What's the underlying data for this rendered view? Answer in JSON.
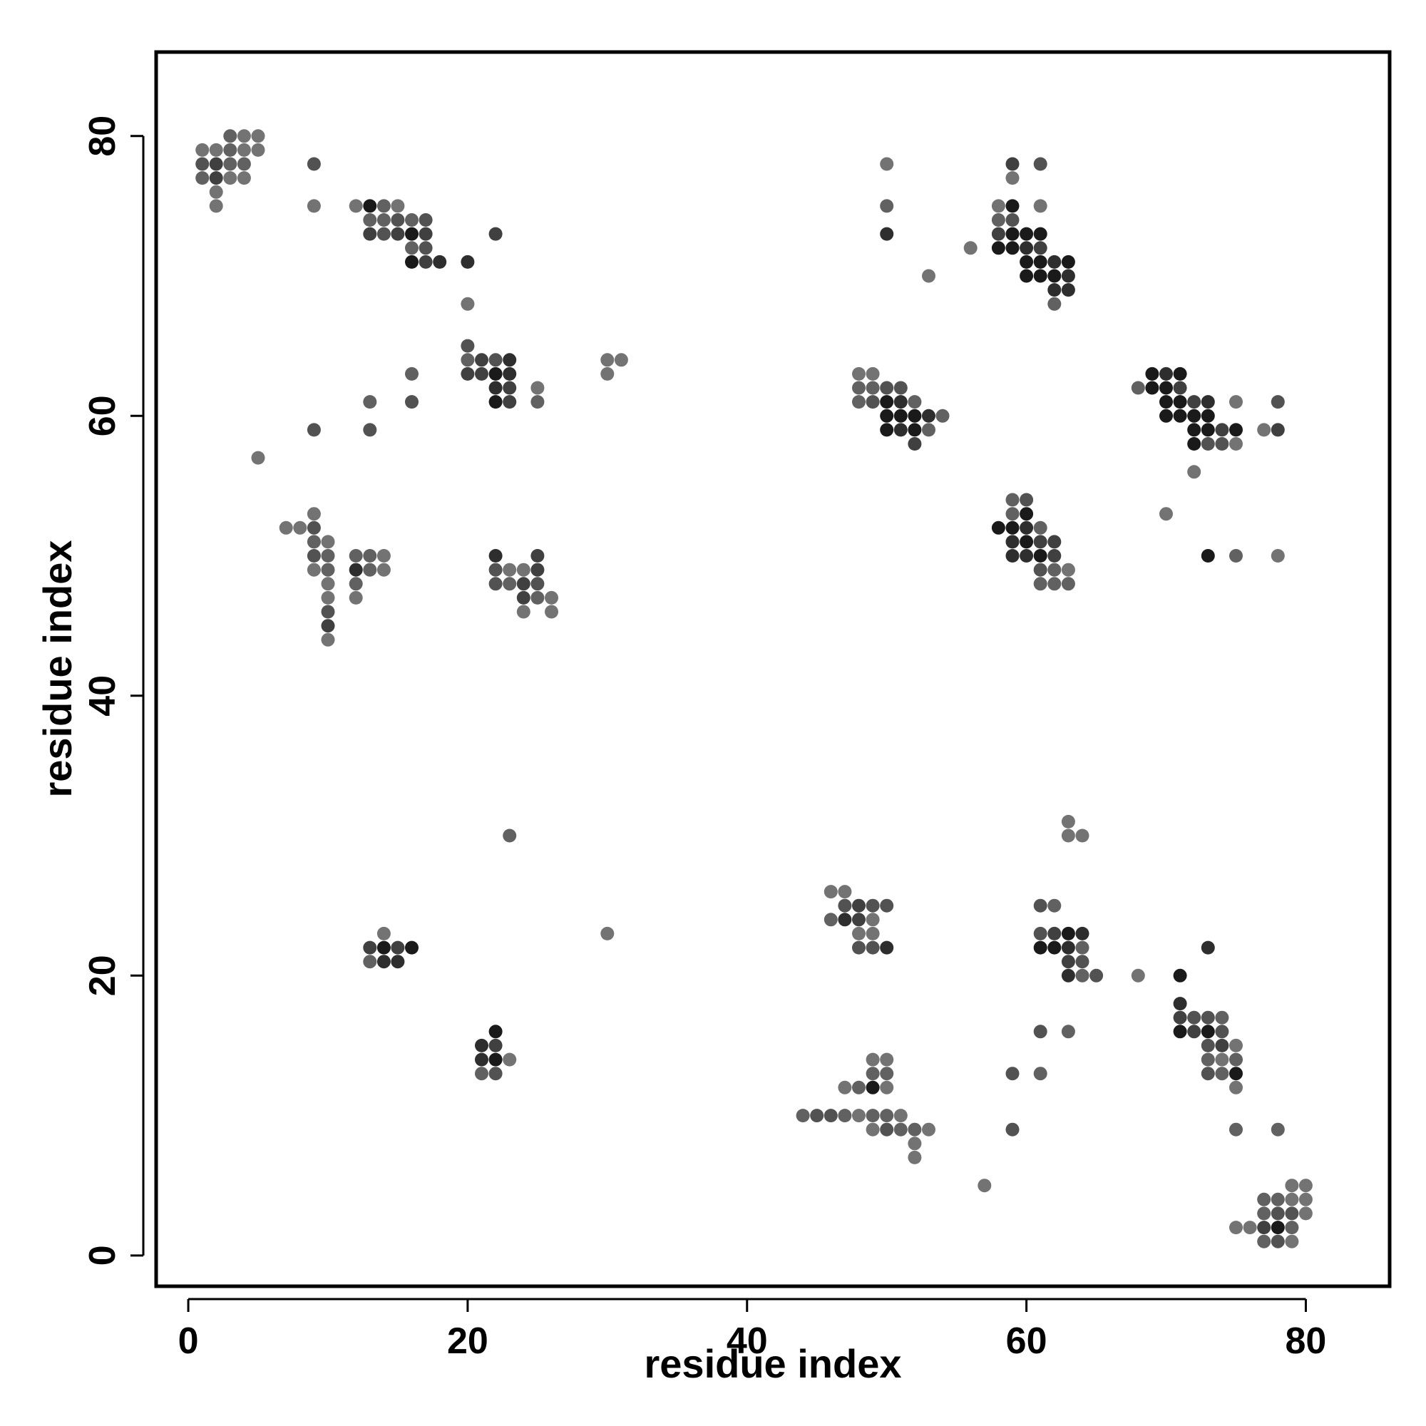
{
  "chart_data": {
    "type": "scatter",
    "title": "",
    "xlabel": "residue index",
    "ylabel": "residue index",
    "xlim": [
      -2.3,
      86
    ],
    "ylim": [
      -2.2,
      86
    ],
    "xticks": [
      0,
      20,
      40,
      60,
      80
    ],
    "yticks": [
      0,
      20,
      40,
      60,
      80
    ],
    "grid": false,
    "legend": "none",
    "points": [
      [
        1,
        79,
        0.45
      ],
      [
        2,
        79,
        0.45
      ],
      [
        3,
        80,
        0.38
      ],
      [
        4,
        80,
        0.45
      ],
      [
        5,
        80,
        0.45
      ],
      [
        3,
        79,
        0.38
      ],
      [
        4,
        79,
        0.45
      ],
      [
        5,
        79,
        0.45
      ],
      [
        1,
        78,
        0.32
      ],
      [
        2,
        78,
        0.25
      ],
      [
        3,
        78,
        0.38
      ],
      [
        4,
        78,
        0.38
      ],
      [
        1,
        77,
        0.38
      ],
      [
        2,
        77,
        0.25
      ],
      [
        3,
        77,
        0.45
      ],
      [
        4,
        77,
        0.45
      ],
      [
        2,
        76,
        0.45
      ],
      [
        2,
        75,
        0.45
      ],
      [
        9,
        78,
        0.32
      ],
      [
        9,
        75,
        0.45
      ],
      [
        12,
        75,
        0.45
      ],
      [
        13,
        75,
        0.1
      ],
      [
        14,
        75,
        0.38
      ],
      [
        15,
        75,
        0.45
      ],
      [
        13,
        74,
        0.38
      ],
      [
        14,
        74,
        0.38
      ],
      [
        15,
        74,
        0.32
      ],
      [
        16,
        74,
        0.38
      ],
      [
        17,
        74,
        0.32
      ],
      [
        13,
        73,
        0.25
      ],
      [
        14,
        73,
        0.32
      ],
      [
        15,
        73,
        0.25
      ],
      [
        16,
        73,
        0.1
      ],
      [
        17,
        73,
        0.25
      ],
      [
        16,
        72,
        0.38
      ],
      [
        17,
        72,
        0.32
      ],
      [
        16,
        71,
        0.1
      ],
      [
        17,
        71,
        0.25
      ],
      [
        18,
        71,
        0.18
      ],
      [
        22,
        73,
        0.25
      ],
      [
        20,
        71,
        0.18
      ],
      [
        20,
        68,
        0.45
      ],
      [
        20,
        65,
        0.32
      ],
      [
        20,
        64,
        0.38
      ],
      [
        21,
        64,
        0.25
      ],
      [
        22,
        64,
        0.32
      ],
      [
        23,
        64,
        0.18
      ],
      [
        20,
        63,
        0.25
      ],
      [
        21,
        63,
        0.25
      ],
      [
        22,
        63,
        0.1
      ],
      [
        23,
        63,
        0.18
      ],
      [
        22,
        62,
        0.18
      ],
      [
        23,
        62,
        0.25
      ],
      [
        22,
        61,
        0.1
      ],
      [
        23,
        61,
        0.25
      ],
      [
        25,
        62,
        0.45
      ],
      [
        25,
        61,
        0.38
      ],
      [
        16,
        63,
        0.38
      ],
      [
        16,
        61,
        0.32
      ],
      [
        13,
        61,
        0.38
      ],
      [
        30,
        64,
        0.45
      ],
      [
        31,
        64,
        0.45
      ],
      [
        30,
        63,
        0.45
      ],
      [
        9,
        59,
        0.32
      ],
      [
        13,
        59,
        0.32
      ],
      [
        5,
        57,
        0.45
      ],
      [
        7,
        52,
        0.45
      ],
      [
        8,
        52,
        0.45
      ],
      [
        9,
        53,
        0.45
      ],
      [
        9,
        52,
        0.32
      ],
      [
        9,
        51,
        0.38
      ],
      [
        10,
        51,
        0.45
      ],
      [
        9,
        50,
        0.32
      ],
      [
        10,
        50,
        0.38
      ],
      [
        9,
        49,
        0.45
      ],
      [
        10,
        49,
        0.38
      ],
      [
        10,
        48,
        0.45
      ],
      [
        10,
        47,
        0.45
      ],
      [
        10,
        46,
        0.32
      ],
      [
        10,
        45,
        0.25
      ],
      [
        10,
        44,
        0.45
      ],
      [
        12,
        50,
        0.38
      ],
      [
        13,
        50,
        0.38
      ],
      [
        14,
        50,
        0.45
      ],
      [
        12,
        49,
        0.18
      ],
      [
        13,
        49,
        0.38
      ],
      [
        14,
        49,
        0.45
      ],
      [
        12,
        48,
        0.38
      ],
      [
        12,
        47,
        0.45
      ],
      [
        22,
        50,
        0.18
      ],
      [
        25,
        50,
        0.25
      ],
      [
        22,
        49,
        0.32
      ],
      [
        23,
        49,
        0.45
      ],
      [
        24,
        49,
        0.45
      ],
      [
        25,
        49,
        0.25
      ],
      [
        22,
        48,
        0.32
      ],
      [
        23,
        48,
        0.38
      ],
      [
        24,
        48,
        0.25
      ],
      [
        25,
        48,
        0.32
      ],
      [
        24,
        47,
        0.25
      ],
      [
        25,
        47,
        0.38
      ],
      [
        26,
        47,
        0.45
      ],
      [
        24,
        46,
        0.45
      ],
      [
        26,
        46,
        0.45
      ],
      [
        50,
        78,
        0.45
      ],
      [
        50,
        75,
        0.38
      ],
      [
        50,
        73,
        0.18
      ],
      [
        53,
        70,
        0.45
      ],
      [
        56,
        72,
        0.45
      ],
      [
        59,
        78,
        0.25
      ],
      [
        61,
        78,
        0.32
      ],
      [
        59,
        77,
        0.45
      ],
      [
        58,
        75,
        0.45
      ],
      [
        59,
        75,
        0.1
      ],
      [
        61,
        75,
        0.45
      ],
      [
        58,
        74,
        0.38
      ],
      [
        59,
        74,
        0.32
      ],
      [
        58,
        73,
        0.25
      ],
      [
        59,
        73,
        0.1
      ],
      [
        60,
        73,
        0.1
      ],
      [
        61,
        73,
        0.1
      ],
      [
        58,
        72,
        0.1
      ],
      [
        59,
        72,
        0.1
      ],
      [
        60,
        72,
        0.18
      ],
      [
        61,
        72,
        0.25
      ],
      [
        60,
        71,
        0.1
      ],
      [
        61,
        71,
        0.1
      ],
      [
        62,
        71,
        0.18
      ],
      [
        63,
        71,
        0.1
      ],
      [
        60,
        70,
        0.1
      ],
      [
        61,
        70,
        0.1
      ],
      [
        62,
        70,
        0.1
      ],
      [
        63,
        70,
        0.18
      ],
      [
        62,
        69,
        0.18
      ],
      [
        63,
        69,
        0.18
      ],
      [
        62,
        68,
        0.38
      ],
      [
        48,
        63,
        0.45
      ],
      [
        49,
        63,
        0.45
      ],
      [
        48,
        62,
        0.38
      ],
      [
        49,
        62,
        0.38
      ],
      [
        50,
        62,
        0.32
      ],
      [
        51,
        62,
        0.32
      ],
      [
        48,
        61,
        0.38
      ],
      [
        49,
        61,
        0.32
      ],
      [
        50,
        61,
        0.1
      ],
      [
        51,
        61,
        0.18
      ],
      [
        52,
        61,
        0.38
      ],
      [
        50,
        60,
        0.1
      ],
      [
        51,
        60,
        0.1
      ],
      [
        52,
        60,
        0.1
      ],
      [
        53,
        60,
        0.18
      ],
      [
        54,
        60,
        0.38
      ],
      [
        50,
        59,
        0.1
      ],
      [
        51,
        59,
        0.18
      ],
      [
        52,
        59,
        0.1
      ],
      [
        53,
        59,
        0.38
      ],
      [
        52,
        58,
        0.25
      ],
      [
        59,
        54,
        0.38
      ],
      [
        60,
        54,
        0.32
      ],
      [
        58,
        52,
        0.1
      ],
      [
        59,
        52,
        0.1
      ],
      [
        60,
        52,
        0.18
      ],
      [
        61,
        52,
        0.38
      ],
      [
        59,
        53,
        0.38
      ],
      [
        60,
        53,
        0.1
      ],
      [
        59,
        51,
        0.18
      ],
      [
        60,
        51,
        0.1
      ],
      [
        61,
        51,
        0.25
      ],
      [
        62,
        51,
        0.25
      ],
      [
        59,
        50,
        0.18
      ],
      [
        60,
        50,
        0.18
      ],
      [
        61,
        50,
        0.1
      ],
      [
        62,
        50,
        0.25
      ],
      [
        61,
        49,
        0.32
      ],
      [
        62,
        49,
        0.38
      ],
      [
        63,
        49,
        0.45
      ],
      [
        61,
        48,
        0.38
      ],
      [
        62,
        48,
        0.38
      ],
      [
        63,
        48,
        0.38
      ],
      [
        68,
        62,
        0.38
      ],
      [
        69,
        63,
        0.1
      ],
      [
        70,
        63,
        0.18
      ],
      [
        71,
        63,
        0.1
      ],
      [
        69,
        62,
        0.1
      ],
      [
        70,
        62,
        0.1
      ],
      [
        71,
        62,
        0.25
      ],
      [
        70,
        61,
        0.1
      ],
      [
        71,
        61,
        0.1
      ],
      [
        72,
        61,
        0.25
      ],
      [
        73,
        61,
        0.18
      ],
      [
        75,
        61,
        0.45
      ],
      [
        78,
        61,
        0.32
      ],
      [
        70,
        60,
        0.1
      ],
      [
        71,
        60,
        0.1
      ],
      [
        72,
        60,
        0.1
      ],
      [
        73,
        60,
        0.1
      ],
      [
        72,
        59,
        0.1
      ],
      [
        73,
        59,
        0.1
      ],
      [
        74,
        59,
        0.25
      ],
      [
        75,
        59,
        0.1
      ],
      [
        77,
        59,
        0.45
      ],
      [
        78,
        59,
        0.25
      ],
      [
        72,
        58,
        0.1
      ],
      [
        73,
        58,
        0.32
      ],
      [
        74,
        58,
        0.32
      ],
      [
        75,
        58,
        0.45
      ],
      [
        72,
        56,
        0.45
      ],
      [
        70,
        53,
        0.45
      ],
      [
        73,
        50,
        0.1
      ],
      [
        75,
        50,
        0.38
      ],
      [
        78,
        50,
        0.45
      ],
      [
        63,
        31,
        0.45
      ],
      [
        63,
        30,
        0.45
      ],
      [
        64,
        30,
        0.45
      ],
      [
        23,
        30,
        0.38
      ],
      [
        30,
        23,
        0.45
      ],
      [
        14,
        23,
        0.45
      ],
      [
        13,
        22,
        0.25
      ],
      [
        14,
        22,
        0.1
      ],
      [
        15,
        22,
        0.25
      ],
      [
        16,
        22,
        0.1
      ],
      [
        13,
        21,
        0.38
      ],
      [
        14,
        21,
        0.18
      ],
      [
        15,
        21,
        0.18
      ],
      [
        46,
        26,
        0.45
      ],
      [
        47,
        26,
        0.45
      ],
      [
        47,
        25,
        0.32
      ],
      [
        48,
        25,
        0.25
      ],
      [
        49,
        25,
        0.32
      ],
      [
        50,
        25,
        0.32
      ],
      [
        46,
        24,
        0.38
      ],
      [
        47,
        24,
        0.18
      ],
      [
        48,
        24,
        0.25
      ],
      [
        49,
        24,
        0.45
      ],
      [
        48,
        23,
        0.45
      ],
      [
        49,
        23,
        0.45
      ],
      [
        48,
        22,
        0.32
      ],
      [
        49,
        22,
        0.32
      ],
      [
        50,
        22,
        0.18
      ],
      [
        61,
        25,
        0.32
      ],
      [
        62,
        25,
        0.38
      ],
      [
        61,
        23,
        0.32
      ],
      [
        62,
        23,
        0.25
      ],
      [
        63,
        23,
        0.1
      ],
      [
        64,
        23,
        0.18
      ],
      [
        61,
        22,
        0.1
      ],
      [
        62,
        22,
        0.1
      ],
      [
        63,
        22,
        0.18
      ],
      [
        64,
        22,
        0.38
      ],
      [
        63,
        21,
        0.25
      ],
      [
        64,
        21,
        0.32
      ],
      [
        63,
        20,
        0.18
      ],
      [
        64,
        20,
        0.38
      ],
      [
        65,
        20,
        0.32
      ],
      [
        68,
        20,
        0.45
      ],
      [
        61,
        16,
        0.32
      ],
      [
        63,
        16,
        0.38
      ],
      [
        73,
        22,
        0.18
      ],
      [
        71,
        20,
        0.1
      ],
      [
        71,
        18,
        0.18
      ],
      [
        71,
        17,
        0.25
      ],
      [
        72,
        17,
        0.32
      ],
      [
        73,
        17,
        0.32
      ],
      [
        74,
        17,
        0.38
      ],
      [
        71,
        16,
        0.1
      ],
      [
        72,
        16,
        0.25
      ],
      [
        73,
        16,
        0.1
      ],
      [
        74,
        16,
        0.32
      ],
      [
        73,
        15,
        0.32
      ],
      [
        74,
        15,
        0.25
      ],
      [
        75,
        15,
        0.45
      ],
      [
        73,
        14,
        0.38
      ],
      [
        74,
        14,
        0.45
      ],
      [
        75,
        14,
        0.38
      ],
      [
        73,
        13,
        0.32
      ],
      [
        74,
        13,
        0.38
      ],
      [
        75,
        13,
        0.1
      ],
      [
        75,
        12,
        0.45
      ],
      [
        75,
        9,
        0.38
      ],
      [
        78,
        9,
        0.38
      ],
      [
        22,
        16,
        0.1
      ],
      [
        21,
        15,
        0.18
      ],
      [
        22,
        15,
        0.25
      ],
      [
        21,
        14,
        0.18
      ],
      [
        22,
        14,
        0.1
      ],
      [
        23,
        14,
        0.45
      ],
      [
        21,
        13,
        0.38
      ],
      [
        22,
        13,
        0.32
      ],
      [
        49,
        14,
        0.45
      ],
      [
        50,
        14,
        0.45
      ],
      [
        49,
        13,
        0.38
      ],
      [
        50,
        13,
        0.38
      ],
      [
        47,
        12,
        0.45
      ],
      [
        48,
        12,
        0.38
      ],
      [
        49,
        12,
        0.1
      ],
      [
        50,
        12,
        0.45
      ],
      [
        44,
        10,
        0.38
      ],
      [
        45,
        10,
        0.32
      ],
      [
        46,
        10,
        0.32
      ],
      [
        47,
        10,
        0.38
      ],
      [
        48,
        10,
        0.45
      ],
      [
        49,
        10,
        0.38
      ],
      [
        50,
        10,
        0.38
      ],
      [
        51,
        10,
        0.45
      ],
      [
        49,
        9,
        0.45
      ],
      [
        50,
        9,
        0.32
      ],
      [
        51,
        9,
        0.38
      ],
      [
        52,
        9,
        0.38
      ],
      [
        53,
        9,
        0.45
      ],
      [
        52,
        8,
        0.45
      ],
      [
        52,
        7,
        0.45
      ],
      [
        59,
        13,
        0.32
      ],
      [
        61,
        13,
        0.38
      ],
      [
        59,
        9,
        0.32
      ],
      [
        57,
        5,
        0.45
      ],
      [
        79,
        5,
        0.45
      ],
      [
        80,
        5,
        0.45
      ],
      [
        77,
        4,
        0.38
      ],
      [
        78,
        4,
        0.38
      ],
      [
        79,
        4,
        0.45
      ],
      [
        80,
        4,
        0.45
      ],
      [
        77,
        3,
        0.38
      ],
      [
        78,
        3,
        0.32
      ],
      [
        79,
        3,
        0.32
      ],
      [
        80,
        3,
        0.45
      ],
      [
        75,
        2,
        0.45
      ],
      [
        76,
        2,
        0.45
      ],
      [
        77,
        2,
        0.25
      ],
      [
        78,
        2,
        0.1
      ],
      [
        79,
        2,
        0.38
      ],
      [
        77,
        1,
        0.38
      ],
      [
        78,
        1,
        0.32
      ],
      [
        79,
        1,
        0.45
      ]
    ]
  }
}
